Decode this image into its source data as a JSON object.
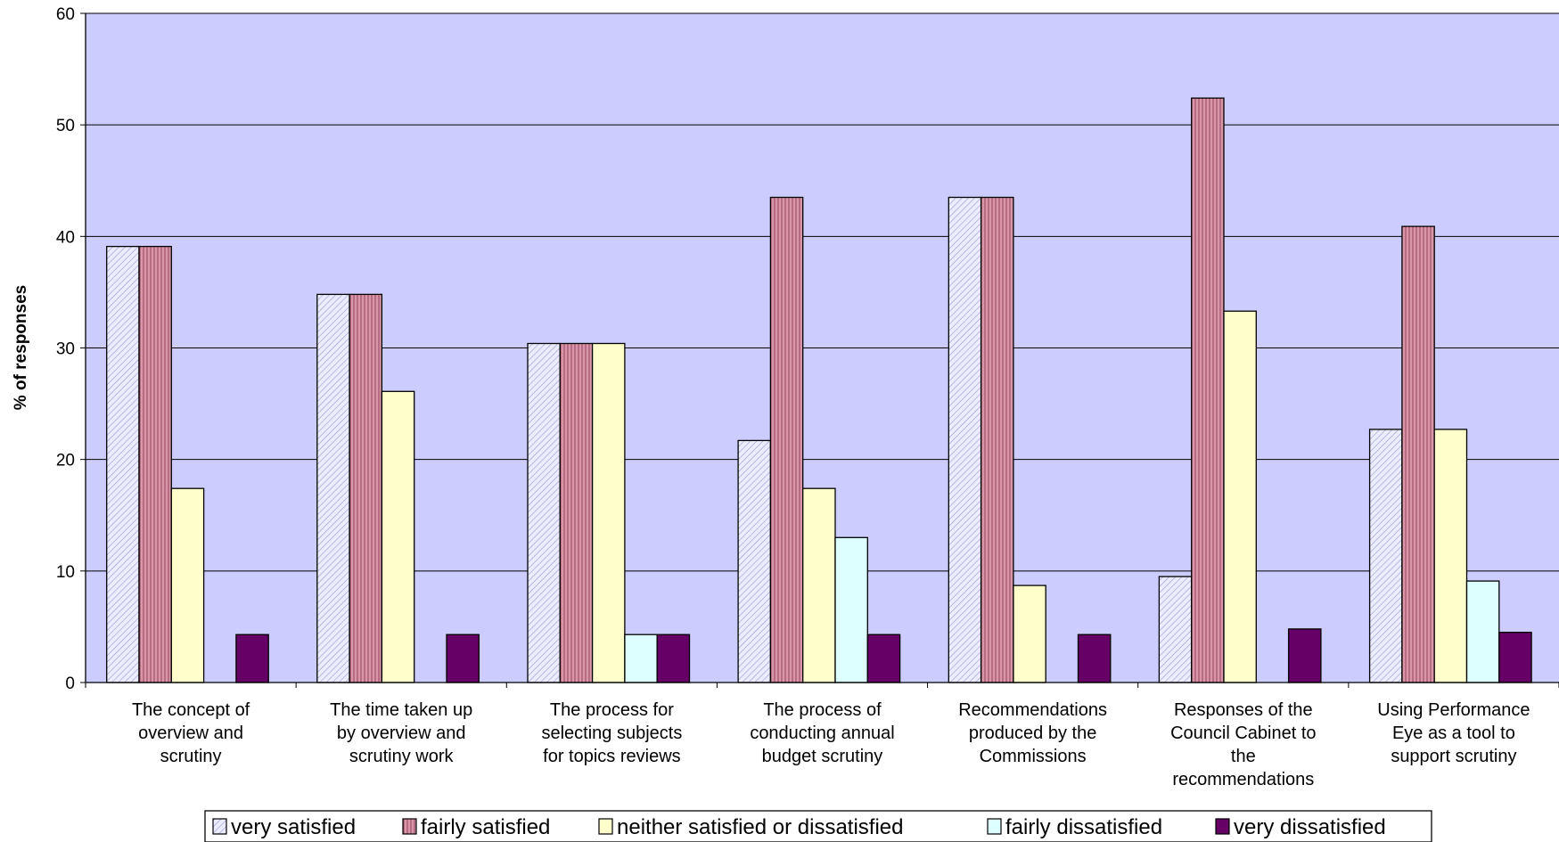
{
  "chart_data": {
    "type": "bar",
    "ylabel": "% of responses",
    "xlabel": "",
    "ylim": [
      0,
      60
    ],
    "yticks": [
      "0",
      "10",
      "20",
      "30",
      "40",
      "50",
      "60"
    ],
    "grid": true,
    "legend_position": "bottom",
    "plot_background": "#CCCCFF",
    "categories": [
      [
        "The concept of",
        "overview and",
        "scrutiny"
      ],
      [
        "The time taken up",
        "by overview and",
        "scrutiny work"
      ],
      [
        "The process for",
        "selecting subjects",
        "for topics reviews"
      ],
      [
        "The process of",
        "conducting annual",
        "budget scrutiny"
      ],
      [
        "Recommendations",
        "produced by the",
        "Commissions"
      ],
      [
        "Responses of the",
        "Council Cabinet to",
        "the",
        "recommendations"
      ],
      [
        "Using Performance",
        "Eye as a tool to",
        "support scrutiny"
      ]
    ],
    "series": [
      {
        "name": "very satisfied",
        "color": "#E8E8FF",
        "pattern": "diagonal",
        "values": [
          39.1,
          34.8,
          30.4,
          21.7,
          43.5,
          9.5,
          22.7
        ]
      },
      {
        "name": "fairly satisfied",
        "color": "#CC8899",
        "pattern": "vertical",
        "values": [
          39.1,
          34.8,
          30.4,
          43.5,
          43.5,
          52.4,
          40.9
        ]
      },
      {
        "name": "neither satisfied or dissatisfied",
        "color": "#FFFFCC",
        "pattern": "none",
        "values": [
          17.4,
          26.1,
          30.4,
          17.4,
          8.7,
          33.3,
          22.7
        ]
      },
      {
        "name": "fairly dissatisfied",
        "color": "#DDFFFF",
        "pattern": "none",
        "values": [
          0,
          0,
          4.3,
          13.0,
          0,
          0,
          9.1
        ]
      },
      {
        "name": "very dissatisfied",
        "color": "#660066",
        "pattern": "none",
        "values": [
          4.3,
          4.3,
          4.3,
          4.3,
          4.3,
          4.8,
          4.5
        ]
      }
    ]
  }
}
